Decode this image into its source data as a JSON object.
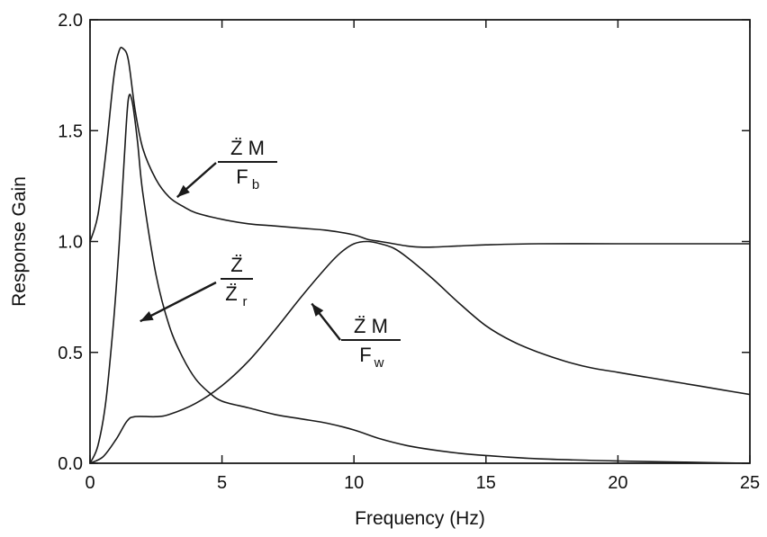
{
  "chart_data": {
    "type": "line",
    "title": "",
    "xlabel": "Frequency (Hz)",
    "ylabel": "Response Gain",
    "xlim": [
      0,
      25
    ],
    "ylim": [
      0,
      2.0
    ],
    "x_ticks": [
      0,
      5,
      10,
      15,
      20,
      25
    ],
    "y_ticks": [
      0.0,
      0.5,
      1.0,
      1.5,
      2.0
    ],
    "x_tick_labels": [
      "0",
      "5",
      "10",
      "15",
      "20",
      "25"
    ],
    "y_tick_labels": [
      "0.0",
      "0.5",
      "1.0",
      "1.5",
      "2.0"
    ],
    "grid": false,
    "legend": "none",
    "series": [
      {
        "x": [
          0,
          0.3,
          0.6,
          0.9,
          1.1,
          1.25,
          1.45,
          1.7,
          2.0,
          2.5,
          3.0,
          3.5,
          4.0,
          5.0,
          6.0,
          7.0,
          8.0,
          9.0,
          10.0,
          10.5,
          11.0,
          11.5,
          12.0,
          12.5,
          13.0,
          14.0,
          15.0,
          17.0,
          20.0,
          22.5,
          25.0
        ],
        "values": [
          1.0,
          1.12,
          1.4,
          1.74,
          1.86,
          1.87,
          1.82,
          1.6,
          1.42,
          1.28,
          1.2,
          1.16,
          1.13,
          1.1,
          1.08,
          1.07,
          1.06,
          1.05,
          1.03,
          1.01,
          1.0,
          0.99,
          0.98,
          0.975,
          0.975,
          0.98,
          0.985,
          0.99,
          0.99,
          0.99,
          0.99
        ]
      },
      {
        "x": [
          0,
          0.3,
          0.6,
          0.9,
          1.1,
          1.3,
          1.45,
          1.6,
          1.8,
          2.0,
          2.5,
          3.0,
          3.5,
          4.0,
          4.5,
          5.0,
          6.0,
          7.0,
          8.0,
          9.0,
          10.0,
          11.0,
          12.0,
          13.0,
          14.0,
          15.0,
          17.0,
          20.0,
          22.5,
          25.0
        ],
        "values": [
          0.0,
          0.08,
          0.28,
          0.65,
          0.98,
          1.38,
          1.64,
          1.63,
          1.45,
          1.22,
          0.85,
          0.62,
          0.48,
          0.38,
          0.32,
          0.28,
          0.25,
          0.22,
          0.2,
          0.18,
          0.15,
          0.11,
          0.08,
          0.06,
          0.045,
          0.035,
          0.02,
          0.01,
          0.005,
          0.0
        ]
      },
      {
        "x": [
          0,
          0.5,
          1.0,
          1.4,
          1.7,
          2.5,
          3.0,
          4.0,
          5.0,
          6.0,
          7.0,
          8.0,
          9.0,
          9.5,
          10.0,
          10.5,
          11.0,
          11.5,
          12.0,
          13.0,
          14.0,
          15.0,
          16.0,
          17.0,
          18.0,
          19.0,
          20.0,
          21.0,
          22.0,
          23.0,
          24.0,
          25.0
        ],
        "values": [
          0.0,
          0.03,
          0.11,
          0.19,
          0.21,
          0.21,
          0.22,
          0.27,
          0.35,
          0.46,
          0.6,
          0.75,
          0.89,
          0.95,
          0.99,
          1.0,
          0.99,
          0.97,
          0.93,
          0.83,
          0.72,
          0.62,
          0.55,
          0.5,
          0.46,
          0.43,
          0.41,
          0.39,
          0.37,
          0.35,
          0.33,
          0.31
        ]
      }
    ],
    "annotations": [
      {
        "numerator": "Z̈ M",
        "denominator_main": "F",
        "denominator_sub": "b",
        "points_to": [
          3.3,
          1.2
        ]
      },
      {
        "numerator": "Z̈",
        "denominator_main": "Z̈",
        "denominator_sub": "r",
        "points_to": [
          1.9,
          0.64
        ]
      },
      {
        "numerator": "Z̈ M",
        "denominator_main": "F",
        "denominator_sub": "w",
        "points_to": [
          8.4,
          0.72
        ]
      }
    ]
  }
}
